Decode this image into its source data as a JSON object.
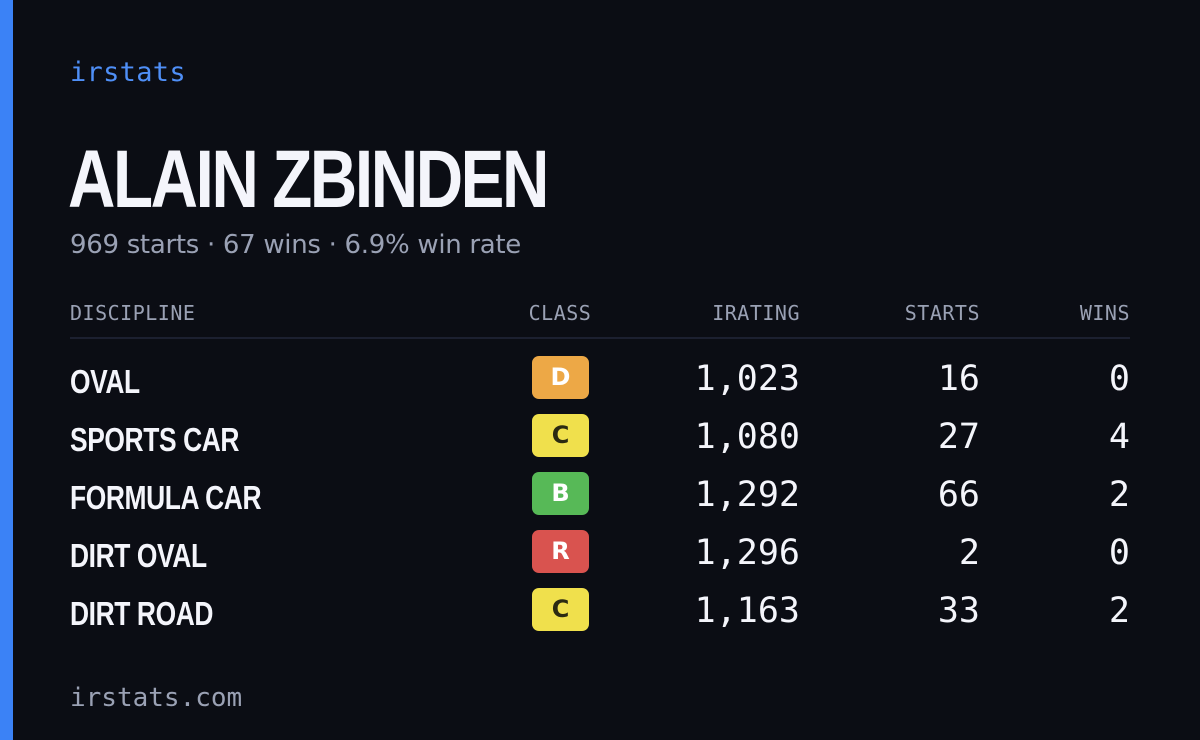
{
  "brand": "irstats",
  "player": {
    "name": "ALAIN ZBINDEN",
    "summary": "969 starts · 67 wins · 6.9% win rate"
  },
  "table": {
    "headers": {
      "discipline": "DISCIPLINE",
      "class": "CLASS",
      "irating": "IRATING",
      "starts": "STARTS",
      "wins": "WINS"
    },
    "rows": [
      {
        "discipline": "OVAL",
        "class": "D",
        "irating": "1,023",
        "starts": "16",
        "wins": "0"
      },
      {
        "discipline": "SPORTS CAR",
        "class": "C",
        "irating": "1,080",
        "starts": "27",
        "wins": "4"
      },
      {
        "discipline": "FORMULA CAR",
        "class": "B",
        "irating": "1,292",
        "starts": "66",
        "wins": "2"
      },
      {
        "discipline": "DIRT OVAL",
        "class": "R",
        "irating": "1,296",
        "starts": "2",
        "wins": "0"
      },
      {
        "discipline": "DIRT ROAD",
        "class": "C",
        "irating": "1,163",
        "starts": "33",
        "wins": "2"
      }
    ]
  },
  "class_colors": {
    "D": "#eda846",
    "C": "#f0e04c",
    "B": "#57b957",
    "R": "#d9534f"
  },
  "accent_color": "#3b82f6",
  "footer": "irstats.com"
}
